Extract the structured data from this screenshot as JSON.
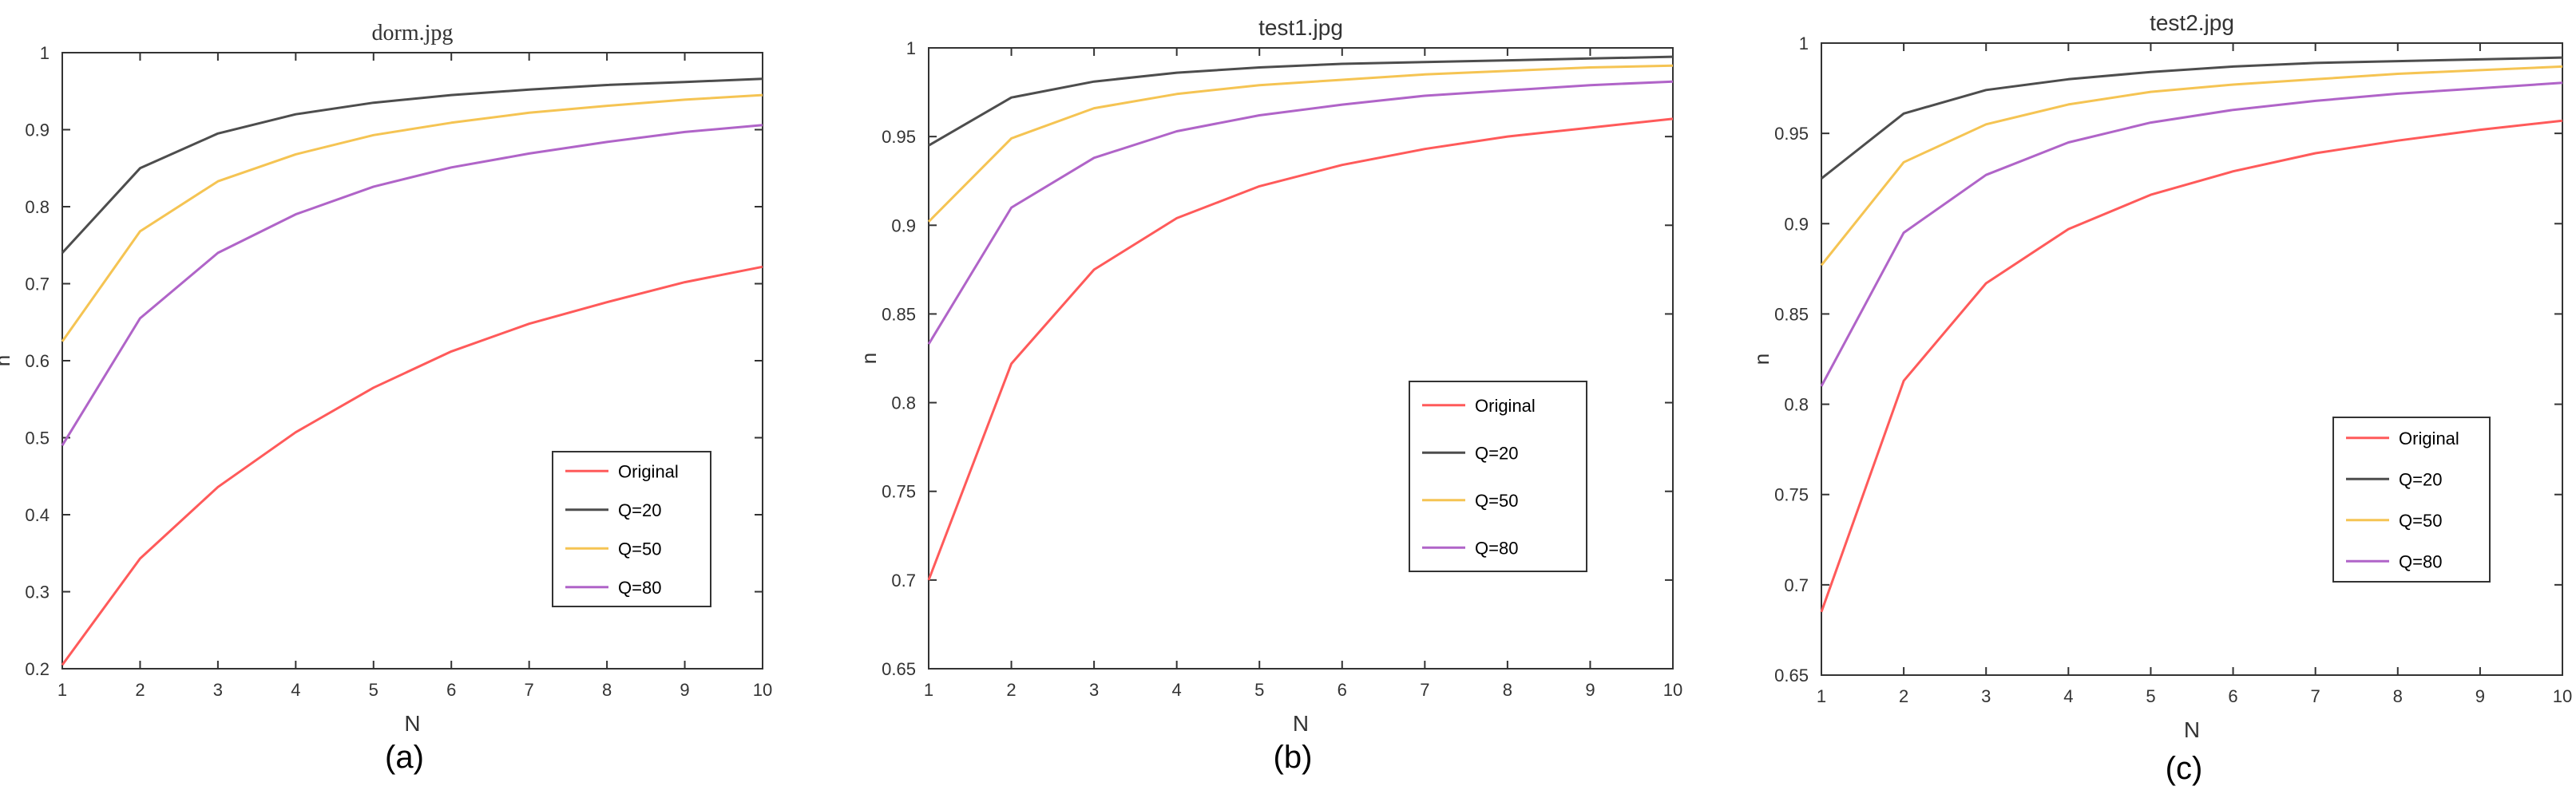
{
  "chart_data": [
    {
      "type": "line",
      "title": "dorm.jpg",
      "caption": "(a)",
      "xlabel": "N",
      "ylabel": "n",
      "xlim": [
        1,
        10
      ],
      "ylim": [
        0.2,
        1
      ],
      "xticks": [
        1,
        2,
        3,
        4,
        5,
        6,
        7,
        8,
        9,
        10
      ],
      "yticks": [
        0.2,
        0.3,
        0.4,
        0.5,
        0.6,
        0.7,
        0.8,
        0.9,
        1
      ],
      "ytick_labels": [
        "0.2",
        "0.3",
        "0.4",
        "0.5",
        "0.6",
        "0.7",
        "0.8",
        "0.9",
        "1"
      ],
      "x": [
        1,
        2,
        3,
        4,
        5,
        6,
        7,
        8,
        9,
        10
      ],
      "legend_position": "bottom-right",
      "series": [
        {
          "name": "Original",
          "color": "#ff5a5a",
          "values": [
            0.205,
            0.343,
            0.436,
            0.507,
            0.565,
            0.612,
            0.648,
            0.676,
            0.702,
            0.722
          ]
        },
        {
          "name": "Q=20",
          "color": "#4d4d4d",
          "values": [
            0.74,
            0.85,
            0.895,
            0.92,
            0.935,
            0.945,
            0.952,
            0.958,
            0.962,
            0.966
          ]
        },
        {
          "name": "Q=50",
          "color": "#f5c453",
          "values": [
            0.625,
            0.768,
            0.833,
            0.868,
            0.893,
            0.909,
            0.922,
            0.931,
            0.939,
            0.945
          ]
        },
        {
          "name": "Q=80",
          "color": "#b064c8",
          "values": [
            0.49,
            0.655,
            0.74,
            0.79,
            0.826,
            0.851,
            0.869,
            0.884,
            0.897,
            0.906
          ]
        }
      ]
    },
    {
      "type": "line",
      "title": "test1.jpg",
      "caption": "(b)",
      "xlabel": "N",
      "ylabel": "n",
      "xlim": [
        1,
        10
      ],
      "ylim": [
        0.65,
        1
      ],
      "xticks": [
        1,
        2,
        3,
        4,
        5,
        6,
        7,
        8,
        9,
        10
      ],
      "yticks": [
        0.65,
        0.7,
        0.75,
        0.8,
        0.85,
        0.9,
        0.95,
        1
      ],
      "ytick_labels": [
        "0.65",
        "0.7",
        "0.75",
        "0.8",
        "0.85",
        "0.9",
        "0.95",
        "1"
      ],
      "x": [
        1,
        2,
        3,
        4,
        5,
        6,
        7,
        8,
        9,
        10
      ],
      "legend_position": "center-right",
      "series": [
        {
          "name": "Original",
          "color": "#ff5a5a",
          "values": [
            0.7,
            0.822,
            0.875,
            0.904,
            0.922,
            0.934,
            0.943,
            0.95,
            0.955,
            0.96
          ]
        },
        {
          "name": "Q=20",
          "color": "#4d4d4d",
          "values": [
            0.945,
            0.972,
            0.981,
            0.986,
            0.989,
            0.991,
            0.992,
            0.993,
            0.994,
            0.995
          ]
        },
        {
          "name": "Q=50",
          "color": "#f5c453",
          "values": [
            0.902,
            0.949,
            0.966,
            0.974,
            0.979,
            0.982,
            0.985,
            0.987,
            0.989,
            0.99
          ]
        },
        {
          "name": "Q=80",
          "color": "#b064c8",
          "values": [
            0.833,
            0.91,
            0.938,
            0.953,
            0.962,
            0.968,
            0.973,
            0.976,
            0.979,
            0.981
          ]
        }
      ]
    },
    {
      "type": "line",
      "title": "test2.jpg",
      "caption": "(c)",
      "xlabel": "N",
      "ylabel": "n",
      "xlim": [
        1,
        10
      ],
      "ylim": [
        0.65,
        1
      ],
      "xticks": [
        1,
        2,
        3,
        4,
        5,
        6,
        7,
        8,
        9,
        10
      ],
      "yticks": [
        0.65,
        0.7,
        0.75,
        0.8,
        0.85,
        0.9,
        0.95,
        1
      ],
      "ytick_labels": [
        "0.65",
        "0.7",
        "0.75",
        "0.8",
        "0.85",
        "0.9",
        "0.95",
        "1"
      ],
      "x": [
        1,
        2,
        3,
        4,
        5,
        6,
        7,
        8,
        9,
        10
      ],
      "legend_position": "center-right",
      "series": [
        {
          "name": "Original",
          "color": "#ff5a5a",
          "values": [
            0.685,
            0.813,
            0.867,
            0.897,
            0.916,
            0.929,
            0.939,
            0.946,
            0.952,
            0.957
          ]
        },
        {
          "name": "Q=20",
          "color": "#4d4d4d",
          "values": [
            0.925,
            0.961,
            0.974,
            0.98,
            0.984,
            0.987,
            0.989,
            0.99,
            0.991,
            0.992
          ]
        },
        {
          "name": "Q=50",
          "color": "#f5c453",
          "values": [
            0.877,
            0.934,
            0.955,
            0.966,
            0.973,
            0.977,
            0.98,
            0.983,
            0.985,
            0.987
          ]
        },
        {
          "name": "Q=80",
          "color": "#b064c8",
          "values": [
            0.81,
            0.895,
            0.927,
            0.945,
            0.956,
            0.963,
            0.968,
            0.972,
            0.975,
            0.978
          ]
        }
      ]
    }
  ]
}
